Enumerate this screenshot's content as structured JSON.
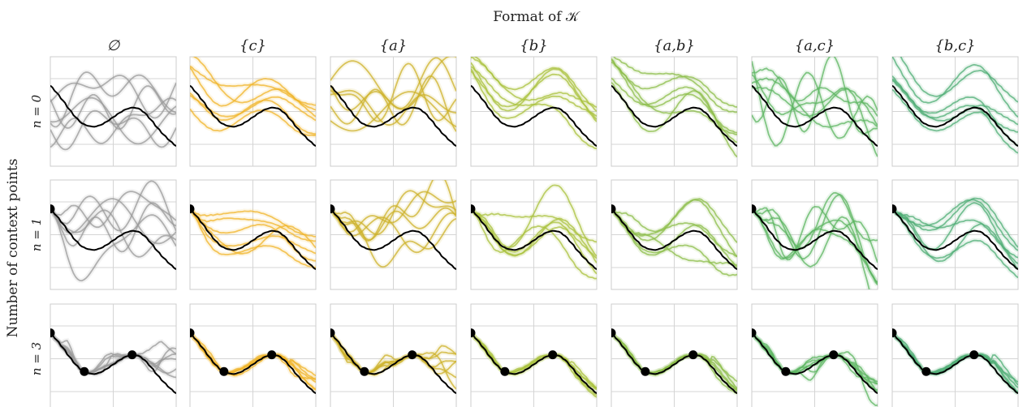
{
  "chart_data": {
    "type": "line",
    "title": "Format of 𝒦",
    "ylabel": "Number of context points",
    "columns": [
      {
        "label": "∅",
        "color": "#9a9a9a"
      },
      {
        "label": "{c}",
        "color": "#f0b429"
      },
      {
        "label": "{a}",
        "color": "#cdb22b"
      },
      {
        "label": "{b}",
        "color": "#a9c23e"
      },
      {
        "label": "{a,b}",
        "color": "#8cbe49"
      },
      {
        "label": "{a,c}",
        "color": "#5db561"
      },
      {
        "label": "{b,c}",
        "color": "#4fae76"
      }
    ],
    "rows": [
      {
        "label": "n = 0",
        "context_x": []
      },
      {
        "label": "n = 1",
        "context_x": [
          0.0
        ]
      },
      {
        "label": "n = 3",
        "context_x": [
          0.0,
          0.27,
          0.65
        ]
      }
    ],
    "true_function": {
      "x": [
        0.0,
        0.05,
        0.1,
        0.15,
        0.2,
        0.25,
        0.3,
        0.35,
        0.4,
        0.45,
        0.5,
        0.55,
        0.6,
        0.65,
        0.7,
        0.75,
        0.8,
        0.85,
        0.9,
        0.95,
        1.0
      ],
      "y": [
        0.72,
        0.64,
        0.55,
        0.45,
        0.36,
        0.29,
        0.26,
        0.25,
        0.27,
        0.31,
        0.36,
        0.41,
        0.45,
        0.47,
        0.46,
        0.41,
        0.33,
        0.24,
        0.16,
        0.09,
        0.03
      ]
    },
    "xlim": [
      0,
      1
    ],
    "ylim": [
      -0.2,
      1.05
    ],
    "grid": true
  }
}
